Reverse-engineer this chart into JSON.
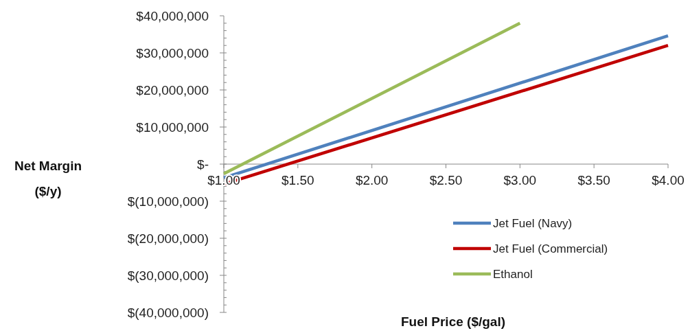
{
  "chart_data": {
    "type": "line",
    "xlabel": "Fuel Price ($/gal)",
    "ylabel": "Net Margin ($/y)",
    "xlim": [
      1,
      4
    ],
    "xticks": [
      {
        "value": 1,
        "label": "$1.00"
      },
      {
        "value": 1.5,
        "label": "$1.50"
      },
      {
        "value": 2,
        "label": "$2.00"
      },
      {
        "value": 2.5,
        "label": "$2.50"
      },
      {
        "value": 3,
        "label": "$3.00"
      },
      {
        "value": 3.5,
        "label": "$3.50"
      },
      {
        "value": 4,
        "label": "$4.00"
      }
    ],
    "ylim": [
      -40000000,
      40000000
    ],
    "yticks": [
      {
        "value": -40000000,
        "label": "$(40,000,000)"
      },
      {
        "value": -30000000,
        "label": "$(30,000,000)"
      },
      {
        "value": -20000000,
        "label": "$(20,000,000)"
      },
      {
        "value": -10000000,
        "label": "$(10,000,000)"
      },
      {
        "value": 0,
        "label": "$-"
      },
      {
        "value": 10000000,
        "label": "$10,000,000"
      },
      {
        "value": 20000000,
        "label": "$20,000,000"
      },
      {
        "value": 30000000,
        "label": "$30,000,000"
      },
      {
        "value": 40000000,
        "label": "$40,000,000"
      }
    ],
    "grid": false,
    "legend": "bottom right",
    "marker": "none",
    "line_style": "solid",
    "series": [
      {
        "name": "Jet Fuel (Navy)",
        "color": "#4f81bd",
        "x": [
          1,
          4
        ],
        "values": [
          -3700000,
          34600000
        ]
      },
      {
        "name": "Jet Fuel (Commercial)",
        "color": "#c00000",
        "x": [
          1,
          4
        ],
        "values": [
          -5400000,
          32000000
        ]
      },
      {
        "name": "Ethanol",
        "color": "#9bbb59",
        "x": [
          1,
          3
        ],
        "values": [
          -2600000,
          38000000
        ]
      }
    ]
  }
}
